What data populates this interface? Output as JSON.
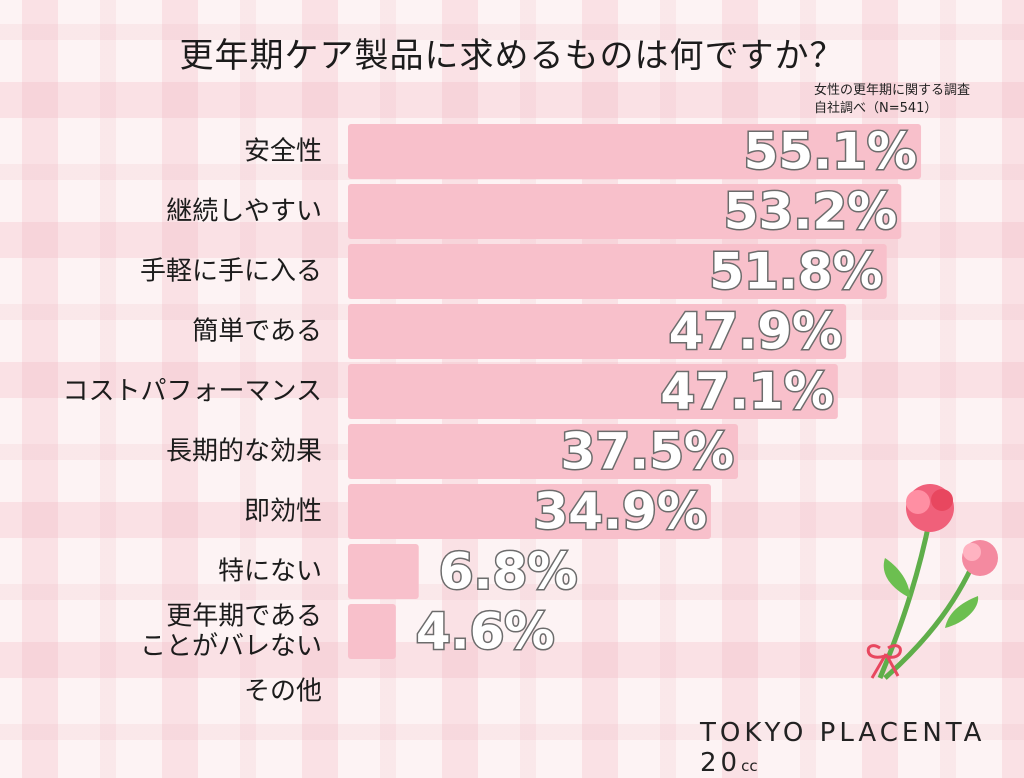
{
  "chart_data": {
    "type": "bar",
    "orientation": "horizontal",
    "title": "更年期ケア製品に求めるものは何ですか？",
    "subtitle": [
      "女性の更年期に関する調査",
      "自社調べ（N=541）"
    ],
    "categories": [
      "安全性",
      "継続しやすい",
      "手軽に手に入る",
      "簡単である",
      "コストパフォーマンス",
      "長期的な効果",
      "即効性",
      "特にない",
      "更年期である\nことがバレない",
      "その他"
    ],
    "values": [
      55.1,
      53.2,
      51.8,
      47.9,
      47.1,
      37.5,
      34.9,
      6.8,
      4.6,
      0
    ],
    "value_labels": [
      "55.1%",
      "53.2%",
      "51.8%",
      "47.9%",
      "47.1%",
      "37.5%",
      "34.9%",
      "6.8%",
      "4.6%",
      ""
    ],
    "xlim": [
      0,
      100
    ],
    "grid": false,
    "bar_color": "#f8c0cb"
  },
  "brand": {
    "name": "TOKYO PLACENTA 20",
    "suffix": "cc"
  },
  "colors": {
    "bar": "#f8c0cb",
    "label_stroke": "#6c6c6c"
  }
}
